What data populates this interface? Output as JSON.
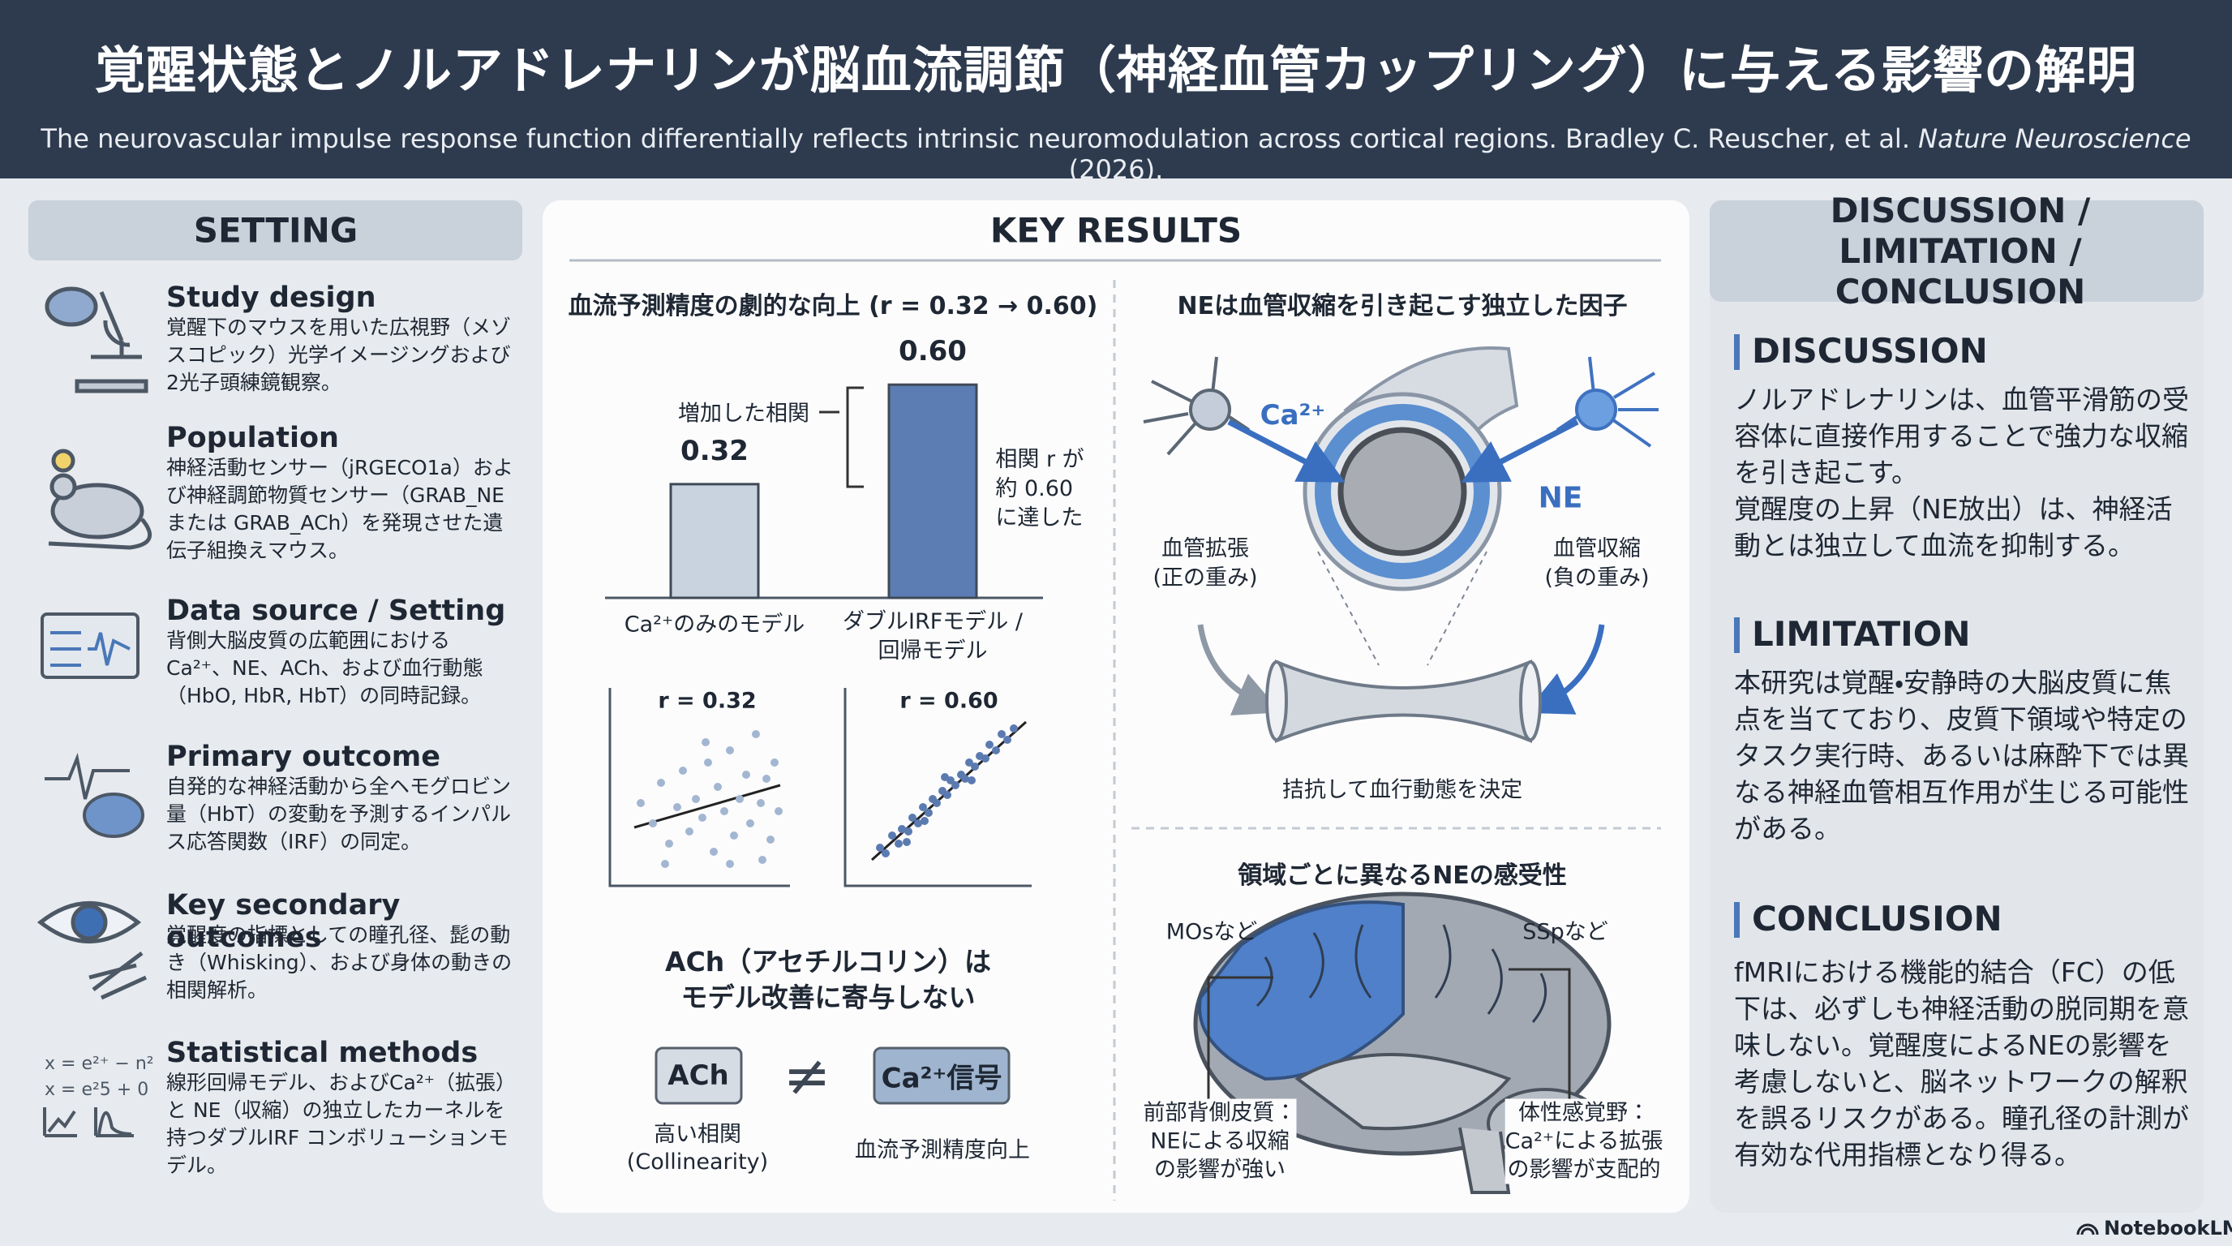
{
  "header": {
    "title": "覚醒状態とノルアドレナリンが脳血流調節（神経血管カップリング）に与える影響の解明",
    "citation": "The neurovascular impulse response function differentially reflects intrinsic neuromodulation across cortical regions. Bradley C. Reuscher, et al.",
    "journal": "Nature Neuroscience",
    "year": "(2026)."
  },
  "setting": {
    "heading": "SETTING",
    "items": [
      {
        "title": "Study design",
        "text": "覚醒下のマウスを用いた広視野（メゾスコピック）光学イメージングおよび2光子頭練鏡観察。"
      },
      {
        "title": "Population",
        "text": "神経活動センサー（jRGECO1a）および神経調節物質センサー（GRAB_NE または GRAB_ACh）を発現させた遺伝子組換えマウス。"
      },
      {
        "title": "Data source / Setting",
        "text": "背側大脳皮質の広範囲における Ca²⁺、NE、ACh、および血行動態（HbO, HbR, HbT）の同時記録。"
      },
      {
        "title": "Primary outcome",
        "text": "自発的な神経活動から全ヘモグロビン量（HbT）の変動を予測するインパルス応答関数（IRF）の同定。"
      },
      {
        "title": "Key secondary outcomes",
        "text": "覚醒度の指標としての瞳孔径、髭の動き（Whisking）、および身体の動きの相関解析。"
      },
      {
        "title": "Statistical methods",
        "text": "線形回帰モデル、およびCa²⁺（拡張）と NE（収縮）の独立したカーネルを持つダブルIRF コンボリューションモデル。"
      }
    ]
  },
  "key_results": {
    "heading": "KEY RESULTS",
    "prediction": {
      "title": "血流予測精度の劇的な向上 (r = 0.32 → 0.60)",
      "chart": {
        "type": "bar",
        "categories": [
          "Ca²⁺のみのモデル",
          "ダブルIRFモデル /\n回帰モデル"
        ],
        "values": [
          0.32,
          0.6
        ],
        "value_labels": [
          "0.32",
          "0.60"
        ],
        "colors": [
          "#c9d3df",
          "#5b7db3"
        ]
      },
      "increase_label": "増加した相関",
      "reach_label": "相関 r が\n約 0.60\nに達した",
      "scatter_labels": [
        "r = 0.32",
        "r = 0.60"
      ]
    },
    "ne_factor": {
      "title": "NEは血管収縮を引き起こす独立した因子",
      "ca_label": "Ca²⁺",
      "ne_label": "NE",
      "dilation": "血管拡張\n(正の重み)",
      "constriction": "血管収縮\n(負の重み)",
      "caption": "拮抗して血行動態を決定"
    },
    "ach": {
      "title": "ACh（アセチルコリン）は\nモデル改善に寄与しない",
      "ach_box": "ACh",
      "not_equal": "≠",
      "ca_box": "Ca²⁺信号",
      "ach_caption": "高い相関\n(Collinearity)",
      "ca_caption": "血流予測精度向上"
    },
    "regions": {
      "title": "領域ごとに異なるNEの感受性",
      "front_tag": "MOsなど",
      "back_tag": "SSpなど",
      "front_text": "前部背側皮質：\nNEによる収縮\nの影響が強い",
      "back_text": "体性感覚野：\nCa²⁺による拡張\nの影響が支配的"
    }
  },
  "discussion": {
    "heading": "DISCUSSION / LIMITATION /\nCONCLUSION",
    "sections": [
      {
        "title": "DISCUSSION",
        "text": "ノルアドレナリンは、血管平滑筋の受容体に直接作用することで強力な収縮を引き起こす。\n覚醒度の上昇（NE放出）は、神経活動とは独立して血流を抑制する。"
      },
      {
        "title": "LIMITATION",
        "text": "本研究は覚醒・安静時の大脳皮質に焦点を当てており、皮質下領域や特定のタスク実行時、あるいは麻酔下では異なる神経血管相互作用が生じる可能性がある。"
      },
      {
        "title": "CONCLUSION",
        "text": "fMRIにおける機能的結合（FC）の低下は、必ずしも神経活動の脱同期を意味しない。覚醒度によるNEの影響を考慮しないと、脳ネットワークの解釈を誤るリスクがある。瞳孔径の計測が有効な代用指標となり得る。"
      }
    ]
  },
  "footer": {
    "brand": "NotebookLM"
  }
}
